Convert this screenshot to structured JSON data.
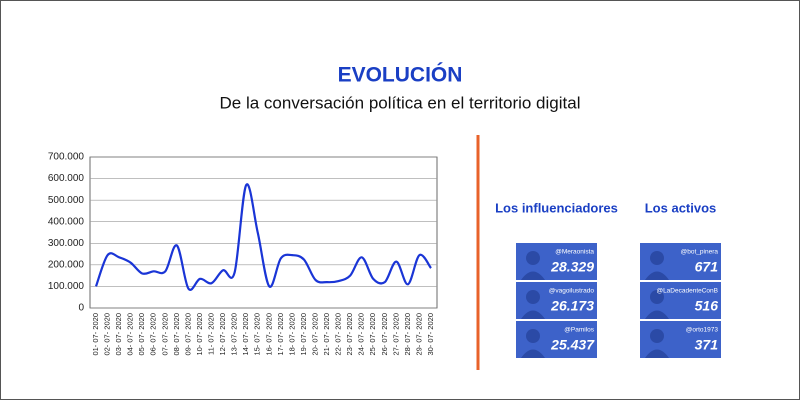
{
  "chart_data": {
    "type": "line",
    "title": "EVOLUCIÓN",
    "subtitle": "De la conversación política en el territorio digital",
    "categories": [
      "01- 07- 2020",
      "02- 07- 2020",
      "03- 07- 2020",
      "04- 07- 2020",
      "05- 07- 2020",
      "06- 07- 2020",
      "07- 07- 2020",
      "08- 07- 2020",
      "09- 07- 2020",
      "10- 07- 2020",
      "11- 07- 2020",
      "12- 07- 2020",
      "13- 07- 2020",
      "14- 07- 2020",
      "15- 07- 2020",
      "16- 07- 2020",
      "17- 07- 2020",
      "18- 07- 2020",
      "19- 07- 2020",
      "20- 07- 2020",
      "21- 07- 2020",
      "22- 07- 2020",
      "23- 07- 2020",
      "24- 07- 2020",
      "25- 07- 2020",
      "26- 07- 2020",
      "27- 07- 2020",
      "28- 07- 2020",
      "29- 07- 2020",
      "30- 07- 2020"
    ],
    "values": [
      100000,
      245000,
      235000,
      210000,
      160000,
      170000,
      170000,
      290000,
      90000,
      135000,
      115000,
      175000,
      165000,
      570000,
      350000,
      100000,
      230000,
      245000,
      225000,
      130000,
      120000,
      125000,
      150000,
      235000,
      135000,
      120000,
      215000,
      110000,
      245000,
      185000
    ],
    "color": "#1a35d6",
    "ylim": [
      0,
      700000
    ],
    "yticks": [
      0,
      {
        "value": 100000,
        "label": "100.000"
      },
      {
        "value": 200000,
        "label": "200.000"
      },
      {
        "value": 300000,
        "label": "300.000"
      },
      {
        "value": 400000,
        "label": "400.000"
      },
      {
        "value": 500000,
        "label": "500.000"
      },
      {
        "value": 600000,
        "label": "600.000"
      },
      {
        "value": 700000,
        "label": "700.000"
      }
    ],
    "grid": true
  },
  "panels": [
    {
      "title": "Los influenciadores",
      "items": [
        {
          "handle": "@Meraonista",
          "count": "28.329"
        },
        {
          "handle": "@vagoilustrado",
          "count": "26.173"
        },
        {
          "handle": "@Pamilos",
          "count": "25.437"
        }
      ]
    },
    {
      "title": "Los activos",
      "items": [
        {
          "handle": "@bot_pinera",
          "count": "671"
        },
        {
          "handle": "@LaDecadenteConB",
          "count": "516"
        },
        {
          "handle": "@orto1973",
          "count": "371"
        }
      ]
    }
  ]
}
